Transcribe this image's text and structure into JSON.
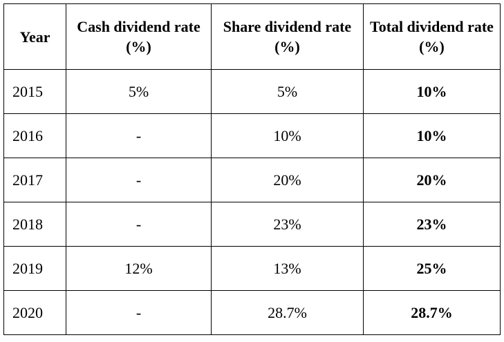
{
  "table": {
    "headers": {
      "year": "Year",
      "cash": "Cash dividend rate (%)",
      "share": "Share dividend rate (%)",
      "total": "Total dividend rate (%)"
    },
    "rows": [
      {
        "year": "2015",
        "cash": "5%",
        "share": "5%",
        "total": "10%"
      },
      {
        "year": "2016",
        "cash": "-",
        "share": "10%",
        "total": "10%"
      },
      {
        "year": "2017",
        "cash": "-",
        "share": "20%",
        "total": "20%"
      },
      {
        "year": "2018",
        "cash": "-",
        "share": "23%",
        "total": "23%"
      },
      {
        "year": "2019",
        "cash": "12%",
        "share": "13%",
        "total": "25%"
      },
      {
        "year": "2020",
        "cash": "-",
        "share": "28.7%",
        "total": "28.7%"
      }
    ]
  }
}
